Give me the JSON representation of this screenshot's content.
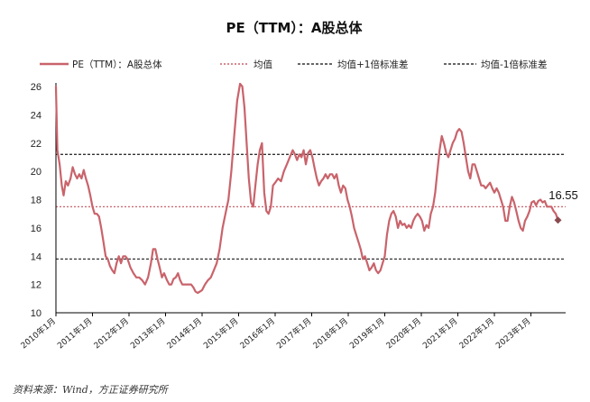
{
  "chart_data": {
    "type": "line",
    "title": "PE（TTM）：A股总体",
    "legend": [
      {
        "label": "PE（TTM）：A股总体",
        "color": "#c9636b",
        "style": "solid"
      },
      {
        "label": "均值",
        "color": "#c9636b",
        "style": "dotted"
      },
      {
        "label": "均值+1倍标准差",
        "color": "#333333",
        "style": "dashed"
      },
      {
        "label": "均值-1倍标准差",
        "color": "#333333",
        "style": "dashed"
      }
    ],
    "legend_position": "top",
    "ylim": [
      10,
      26
    ],
    "yticks": [
      "10",
      "12",
      "14",
      "16",
      "18",
      "20",
      "22",
      "24",
      "26"
    ],
    "xlim": [
      2010.0,
      2023.95
    ],
    "xticks": [
      "2010年1月",
      "2011年1月",
      "2012年1月",
      "2013年1月",
      "2014年1月",
      "2015年1月",
      "2016年1月",
      "2017年1月",
      "2018年1月",
      "2019年1月",
      "2020年1月",
      "2021年1月",
      "2022年1月",
      "2023年1月"
    ],
    "reference_lines": {
      "mean": 17.5,
      "mean_plus_1sd": 21.2,
      "mean_minus_1sd": 13.8
    },
    "last_value_label": "16.55",
    "grid": false,
    "series": [
      {
        "values": [
          [
            2010.0,
            26.0
          ],
          [
            2010.04,
            21.5
          ],
          [
            2010.1,
            20.5
          ],
          [
            2010.16,
            19.0
          ],
          [
            2010.21,
            18.3
          ],
          [
            2010.27,
            19.3
          ],
          [
            2010.33,
            19.0
          ],
          [
            2010.4,
            19.5
          ],
          [
            2010.46,
            20.3
          ],
          [
            2010.52,
            19.8
          ],
          [
            2010.58,
            19.5
          ],
          [
            2010.64,
            19.8
          ],
          [
            2010.7,
            19.5
          ],
          [
            2010.76,
            20.1
          ],
          [
            2010.82,
            19.5
          ],
          [
            2010.88,
            19.0
          ],
          [
            2010.94,
            18.3
          ],
          [
            2011.0,
            17.5
          ],
          [
            2011.06,
            17.0
          ],
          [
            2011.12,
            17.0
          ],
          [
            2011.18,
            16.8
          ],
          [
            2011.24,
            16.0
          ],
          [
            2011.3,
            15.0
          ],
          [
            2011.36,
            14.0
          ],
          [
            2011.42,
            13.8
          ],
          [
            2011.48,
            13.3
          ],
          [
            2011.54,
            13.0
          ],
          [
            2011.6,
            12.8
          ],
          [
            2011.66,
            13.5
          ],
          [
            2011.72,
            14.0
          ],
          [
            2011.78,
            13.5
          ],
          [
            2011.84,
            14.0
          ],
          [
            2011.9,
            14.0
          ],
          [
            2011.96,
            13.8
          ],
          [
            2012.04,
            13.2
          ],
          [
            2012.12,
            12.8
          ],
          [
            2012.2,
            12.5
          ],
          [
            2012.28,
            12.5
          ],
          [
            2012.36,
            12.3
          ],
          [
            2012.44,
            12.0
          ],
          [
            2012.52,
            12.5
          ],
          [
            2012.6,
            13.5
          ],
          [
            2012.66,
            14.5
          ],
          [
            2012.72,
            14.5
          ],
          [
            2012.78,
            13.8
          ],
          [
            2012.84,
            13.2
          ],
          [
            2012.9,
            12.5
          ],
          [
            2012.96,
            12.8
          ],
          [
            2013.04,
            12.3
          ],
          [
            2013.1,
            12.0
          ],
          [
            2013.16,
            12.0
          ],
          [
            2013.22,
            12.4
          ],
          [
            2013.28,
            12.5
          ],
          [
            2013.34,
            12.8
          ],
          [
            2013.4,
            12.3
          ],
          [
            2013.46,
            12.0
          ],
          [
            2013.52,
            12.0
          ],
          [
            2013.58,
            12.0
          ],
          [
            2013.64,
            12.0
          ],
          [
            2013.7,
            12.0
          ],
          [
            2013.76,
            11.8
          ],
          [
            2013.82,
            11.5
          ],
          [
            2013.88,
            11.4
          ],
          [
            2013.94,
            11.5
          ],
          [
            2014.0,
            11.6
          ],
          [
            2014.08,
            12.0
          ],
          [
            2014.16,
            12.3
          ],
          [
            2014.24,
            12.5
          ],
          [
            2014.32,
            13.0
          ],
          [
            2014.4,
            13.5
          ],
          [
            2014.48,
            14.5
          ],
          [
            2014.56,
            16.0
          ],
          [
            2014.64,
            17.0
          ],
          [
            2014.72,
            18.0
          ],
          [
            2014.8,
            20.0
          ],
          [
            2014.88,
            22.5
          ],
          [
            2014.96,
            25.0
          ],
          [
            2015.04,
            26.2
          ],
          [
            2015.1,
            26.0
          ],
          [
            2015.16,
            24.5
          ],
          [
            2015.22,
            22.0
          ],
          [
            2015.28,
            19.5
          ],
          [
            2015.34,
            17.8
          ],
          [
            2015.4,
            17.5
          ],
          [
            2015.46,
            19.0
          ],
          [
            2015.52,
            20.5
          ],
          [
            2015.58,
            21.5
          ],
          [
            2015.64,
            22.0
          ],
          [
            2015.7,
            18.5
          ],
          [
            2015.76,
            17.2
          ],
          [
            2015.82,
            17.0
          ],
          [
            2015.88,
            17.5
          ],
          [
            2015.94,
            19.0
          ],
          [
            2016.0,
            19.2
          ],
          [
            2016.08,
            19.5
          ],
          [
            2016.16,
            19.3
          ],
          [
            2016.24,
            20.0
          ],
          [
            2016.32,
            20.5
          ],
          [
            2016.4,
            21.0
          ],
          [
            2016.48,
            21.5
          ],
          [
            2016.54,
            21.2
          ],
          [
            2016.6,
            20.8
          ],
          [
            2016.66,
            21.2
          ],
          [
            2016.72,
            21.0
          ],
          [
            2016.78,
            21.5
          ],
          [
            2016.84,
            20.5
          ],
          [
            2016.9,
            21.3
          ],
          [
            2016.96,
            21.5
          ],
          [
            2017.02,
            21.0
          ],
          [
            2017.08,
            20.2
          ],
          [
            2017.14,
            19.5
          ],
          [
            2017.2,
            19.0
          ],
          [
            2017.26,
            19.3
          ],
          [
            2017.32,
            19.5
          ],
          [
            2017.38,
            19.8
          ],
          [
            2017.44,
            19.5
          ],
          [
            2017.5,
            19.8
          ],
          [
            2017.56,
            19.8
          ],
          [
            2017.62,
            19.5
          ],
          [
            2017.68,
            19.8
          ],
          [
            2017.74,
            19.0
          ],
          [
            2017.8,
            18.5
          ],
          [
            2017.86,
            19.0
          ],
          [
            2017.92,
            18.8
          ],
          [
            2017.98,
            18.0
          ],
          [
            2018.04,
            17.5
          ],
          [
            2018.1,
            16.8
          ],
          [
            2018.16,
            16.0
          ],
          [
            2018.22,
            15.5
          ],
          [
            2018.28,
            15.0
          ],
          [
            2018.34,
            14.5
          ],
          [
            2018.4,
            13.8
          ],
          [
            2018.46,
            14.0
          ],
          [
            2018.52,
            13.5
          ],
          [
            2018.58,
            13.0
          ],
          [
            2018.64,
            13.2
          ],
          [
            2018.7,
            13.5
          ],
          [
            2018.76,
            13.0
          ],
          [
            2018.82,
            12.8
          ],
          [
            2018.88,
            13.0
          ],
          [
            2018.94,
            13.5
          ],
          [
            2019.0,
            14.0
          ],
          [
            2019.06,
            15.5
          ],
          [
            2019.12,
            16.5
          ],
          [
            2019.18,
            17.0
          ],
          [
            2019.24,
            17.2
          ],
          [
            2019.3,
            16.8
          ],
          [
            2019.36,
            16.0
          ],
          [
            2019.42,
            16.5
          ],
          [
            2019.48,
            16.2
          ],
          [
            2019.54,
            16.3
          ],
          [
            2019.6,
            16.0
          ],
          [
            2019.66,
            16.2
          ],
          [
            2019.72,
            16.0
          ],
          [
            2019.78,
            16.5
          ],
          [
            2019.84,
            16.8
          ],
          [
            2019.9,
            17.0
          ],
          [
            2019.96,
            16.8
          ],
          [
            2020.02,
            16.5
          ],
          [
            2020.08,
            15.8
          ],
          [
            2020.14,
            16.2
          ],
          [
            2020.2,
            16.0
          ],
          [
            2020.26,
            17.0
          ],
          [
            2020.32,
            17.5
          ],
          [
            2020.38,
            18.5
          ],
          [
            2020.44,
            20.0
          ],
          [
            2020.5,
            21.5
          ],
          [
            2020.56,
            22.5
          ],
          [
            2020.62,
            22.0
          ],
          [
            2020.68,
            21.3
          ],
          [
            2020.74,
            21.0
          ],
          [
            2020.8,
            21.5
          ],
          [
            2020.86,
            22.0
          ],
          [
            2020.92,
            22.3
          ],
          [
            2020.98,
            22.8
          ],
          [
            2021.04,
            23.0
          ],
          [
            2021.1,
            22.8
          ],
          [
            2021.16,
            22.0
          ],
          [
            2021.22,
            21.0
          ],
          [
            2021.28,
            20.0
          ],
          [
            2021.34,
            19.5
          ],
          [
            2021.4,
            20.5
          ],
          [
            2021.46,
            20.5
          ],
          [
            2021.52,
            20.0
          ],
          [
            2021.58,
            19.5
          ],
          [
            2021.64,
            19.0
          ],
          [
            2021.7,
            19.0
          ],
          [
            2021.76,
            18.8
          ],
          [
            2021.82,
            19.0
          ],
          [
            2021.88,
            19.2
          ],
          [
            2021.94,
            18.8
          ],
          [
            2022.0,
            18.5
          ],
          [
            2022.06,
            18.8
          ],
          [
            2022.12,
            18.5
          ],
          [
            2022.18,
            18.0
          ],
          [
            2022.24,
            17.5
          ],
          [
            2022.3,
            16.5
          ],
          [
            2022.36,
            16.5
          ],
          [
            2022.42,
            17.5
          ],
          [
            2022.48,
            18.2
          ],
          [
            2022.54,
            17.8
          ],
          [
            2022.6,
            17.2
          ],
          [
            2022.66,
            16.5
          ],
          [
            2022.72,
            16.0
          ],
          [
            2022.78,
            15.8
          ],
          [
            2022.84,
            16.5
          ],
          [
            2022.9,
            16.8
          ],
          [
            2022.96,
            17.2
          ],
          [
            2023.02,
            17.8
          ],
          [
            2023.08,
            17.9
          ],
          [
            2023.14,
            17.6
          ],
          [
            2023.2,
            17.9
          ],
          [
            2023.26,
            18.0
          ],
          [
            2023.32,
            17.8
          ],
          [
            2023.38,
            17.9
          ],
          [
            2023.44,
            17.5
          ],
          [
            2023.5,
            17.5
          ],
          [
            2023.56,
            17.5
          ],
          [
            2023.62,
            17.2
          ],
          [
            2023.68,
            17.0
          ],
          [
            2023.74,
            16.55
          ]
        ]
      }
    ]
  },
  "source_note": "资料来源：Wind，方正证券研究所",
  "colors": {
    "series": "#c9636b",
    "mean": "#c9636b",
    "band": "#333333",
    "axis": "#000000",
    "last_point": "#8a4a4f"
  }
}
